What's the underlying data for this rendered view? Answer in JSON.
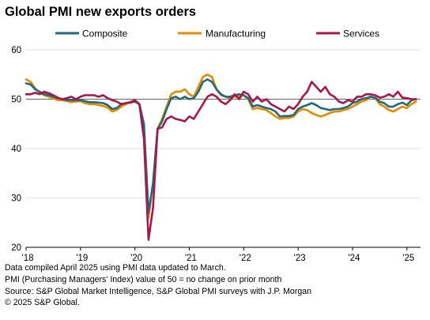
{
  "chart_data": {
    "type": "line",
    "title": "Global PMI new exports orders",
    "x_tick_labels": [
      "'18",
      "'19",
      "'20",
      "'21",
      "'22",
      "'23",
      "'24",
      "'25"
    ],
    "y_ticks": [
      20,
      30,
      40,
      50,
      60
    ],
    "ylim": [
      20,
      60
    ],
    "xlim": [
      2018.0,
      2025.25
    ],
    "reference_line": 50,
    "legend_position": "top",
    "colors": {
      "Composite": "#1f6a7c",
      "Manufacturing": "#e68a00",
      "Services": "#a8174a"
    },
    "series": [
      {
        "name": "Composite",
        "x": [
          2018.0,
          2018.083,
          2018.167,
          2018.25,
          2018.333,
          2018.417,
          2018.5,
          2018.583,
          2018.667,
          2018.75,
          2018.833,
          2018.917,
          2019.0,
          2019.083,
          2019.167,
          2019.25,
          2019.333,
          2019.417,
          2019.5,
          2019.583,
          2019.667,
          2019.75,
          2019.833,
          2019.917,
          2020.0,
          2020.083,
          2020.167,
          2020.25,
          2020.333,
          2020.417,
          2020.5,
          2020.583,
          2020.667,
          2020.75,
          2020.833,
          2020.917,
          2021.0,
          2021.083,
          2021.167,
          2021.25,
          2021.333,
          2021.417,
          2021.5,
          2021.583,
          2021.667,
          2021.75,
          2021.833,
          2021.917,
          2022.0,
          2022.083,
          2022.167,
          2022.25,
          2022.333,
          2022.417,
          2022.5,
          2022.583,
          2022.667,
          2022.75,
          2022.833,
          2022.917,
          2023.0,
          2023.083,
          2023.167,
          2023.25,
          2023.333,
          2023.417,
          2023.5,
          2023.583,
          2023.667,
          2023.75,
          2023.833,
          2023.917,
          2024.0,
          2024.083,
          2024.167,
          2024.25,
          2024.333,
          2024.417,
          2024.5,
          2024.583,
          2024.667,
          2024.75,
          2024.833,
          2024.917,
          2025.0,
          2025.083,
          2025.167
        ],
        "y": [
          53.2,
          53.0,
          52.0,
          51.5,
          51.0,
          50.8,
          50.5,
          50.2,
          50.0,
          49.8,
          49.8,
          49.8,
          49.8,
          49.6,
          49.4,
          49.4,
          49.3,
          49.2,
          48.8,
          48.0,
          48.2,
          49.0,
          49.2,
          49.3,
          49.5,
          49.0,
          45.0,
          27.0,
          33.0,
          44.0,
          45.5,
          48.0,
          50.2,
          50.5,
          50.0,
          50.5,
          50.0,
          50.2,
          51.5,
          53.5,
          54.0,
          53.5,
          52.0,
          51.0,
          50.5,
          50.5,
          50.8,
          51.0,
          50.8,
          50.2,
          48.5,
          48.8,
          48.5,
          48.2,
          48.0,
          47.5,
          46.5,
          46.6,
          46.6,
          46.8,
          48.0,
          48.5,
          48.8,
          49.2,
          48.8,
          48.2,
          48.0,
          47.8,
          48.0,
          48.0,
          48.2,
          48.5,
          49.2,
          49.5,
          50.0,
          50.2,
          50.5,
          50.3,
          49.5,
          49.2,
          48.5,
          48.5,
          49.0,
          49.3,
          48.8,
          49.8,
          50.0
        ]
      },
      {
        "name": "Manufacturing",
        "x": [
          2018.0,
          2018.083,
          2018.167,
          2018.25,
          2018.333,
          2018.417,
          2018.5,
          2018.583,
          2018.667,
          2018.75,
          2018.833,
          2018.917,
          2019.0,
          2019.083,
          2019.167,
          2019.25,
          2019.333,
          2019.417,
          2019.5,
          2019.583,
          2019.667,
          2019.75,
          2019.833,
          2019.917,
          2020.0,
          2020.083,
          2020.167,
          2020.25,
          2020.333,
          2020.417,
          2020.5,
          2020.583,
          2020.667,
          2020.75,
          2020.833,
          2020.917,
          2021.0,
          2021.083,
          2021.167,
          2021.25,
          2021.333,
          2021.417,
          2021.5,
          2021.583,
          2021.667,
          2021.75,
          2021.833,
          2021.917,
          2022.0,
          2022.083,
          2022.167,
          2022.25,
          2022.333,
          2022.417,
          2022.5,
          2022.583,
          2022.667,
          2022.75,
          2022.833,
          2022.917,
          2023.0,
          2023.083,
          2023.167,
          2023.25,
          2023.333,
          2023.417,
          2023.5,
          2023.583,
          2023.667,
          2023.75,
          2023.833,
          2023.917,
          2024.0,
          2024.083,
          2024.167,
          2024.25,
          2024.333,
          2024.417,
          2024.5,
          2024.583,
          2024.667,
          2024.75,
          2024.833,
          2024.917,
          2025.0,
          2025.083,
          2025.167
        ],
        "y": [
          54.0,
          53.5,
          52.2,
          51.3,
          50.8,
          50.5,
          50.2,
          49.8,
          49.8,
          49.6,
          49.4,
          49.5,
          49.6,
          49.2,
          49.0,
          49.0,
          48.8,
          48.6,
          48.3,
          47.5,
          47.8,
          48.5,
          49.0,
          49.5,
          49.8,
          48.8,
          43.0,
          26.0,
          33.0,
          44.0,
          46.0,
          48.5,
          51.0,
          51.5,
          51.5,
          52.0,
          51.0,
          50.5,
          52.5,
          54.5,
          55.0,
          54.5,
          52.0,
          50.8,
          50.5,
          50.2,
          50.5,
          50.5,
          50.8,
          50.0,
          48.0,
          48.2,
          48.0,
          47.8,
          47.2,
          46.5,
          46.0,
          46.2,
          46.2,
          46.5,
          47.5,
          48.0,
          47.8,
          47.2,
          46.8,
          46.5,
          46.8,
          47.2,
          47.5,
          47.5,
          47.8,
          48.0,
          48.5,
          49.0,
          49.5,
          49.8,
          50.5,
          50.2,
          49.0,
          48.5,
          47.8,
          47.5,
          48.0,
          48.5,
          48.2,
          49.0,
          49.5
        ]
      },
      {
        "name": "Services",
        "x": [
          2018.0,
          2018.083,
          2018.167,
          2018.25,
          2018.333,
          2018.417,
          2018.5,
          2018.583,
          2018.667,
          2018.75,
          2018.833,
          2018.917,
          2019.0,
          2019.083,
          2019.167,
          2019.25,
          2019.333,
          2019.417,
          2019.5,
          2019.583,
          2019.667,
          2019.75,
          2019.833,
          2019.917,
          2020.0,
          2020.083,
          2020.167,
          2020.25,
          2020.333,
          2020.417,
          2020.5,
          2020.583,
          2020.667,
          2020.75,
          2020.833,
          2020.917,
          2021.0,
          2021.083,
          2021.167,
          2021.25,
          2021.333,
          2021.417,
          2021.5,
          2021.583,
          2021.667,
          2021.75,
          2021.833,
          2021.917,
          2022.0,
          2022.083,
          2022.167,
          2022.25,
          2022.333,
          2022.417,
          2022.5,
          2022.583,
          2022.667,
          2022.75,
          2022.833,
          2022.917,
          2023.0,
          2023.083,
          2023.167,
          2023.25,
          2023.333,
          2023.417,
          2023.5,
          2023.583,
          2023.667,
          2023.75,
          2023.833,
          2023.917,
          2024.0,
          2024.083,
          2024.167,
          2024.25,
          2024.333,
          2024.417,
          2024.5,
          2024.583,
          2024.667,
          2024.75,
          2024.833,
          2024.917,
          2025.0,
          2025.083,
          2025.167
        ],
        "y": [
          51.0,
          51.0,
          51.3,
          51.0,
          51.5,
          51.2,
          50.8,
          50.3,
          50.0,
          50.2,
          50.5,
          50.0,
          50.5,
          50.8,
          50.8,
          50.8,
          50.5,
          50.8,
          50.2,
          49.8,
          49.5,
          49.0,
          49.2,
          49.3,
          49.8,
          49.0,
          42.0,
          21.5,
          28.0,
          44.0,
          44.3,
          46.0,
          46.5,
          46.0,
          45.8,
          45.5,
          46.5,
          46.0,
          47.5,
          49.0,
          50.5,
          51.0,
          50.5,
          49.5,
          49.0,
          49.8,
          51.0,
          50.0,
          51.5,
          51.0,
          49.5,
          50.5,
          49.5,
          50.0,
          49.0,
          48.5,
          48.0,
          47.5,
          48.5,
          48.0,
          49.0,
          50.5,
          51.5,
          53.5,
          52.5,
          51.5,
          52.5,
          51.0,
          50.5,
          49.5,
          49.2,
          49.8,
          49.5,
          50.5,
          50.5,
          51.0,
          51.0,
          50.8,
          50.3,
          50.5,
          51.0,
          50.5,
          51.5,
          50.3,
          50.2,
          50.0,
          50.0
        ]
      }
    ]
  },
  "footer": {
    "line1": "Data compiled April 2025 using PMI data updated to March.",
    "line2": "PMI (Purchasing Managers' Index) value of 50 = no change on prior month",
    "line3": "Source: S&P Global Market Intelligence, S&P Global PMI surveys with J.P. Morgan",
    "line4": "© 2025 S&P Global."
  }
}
